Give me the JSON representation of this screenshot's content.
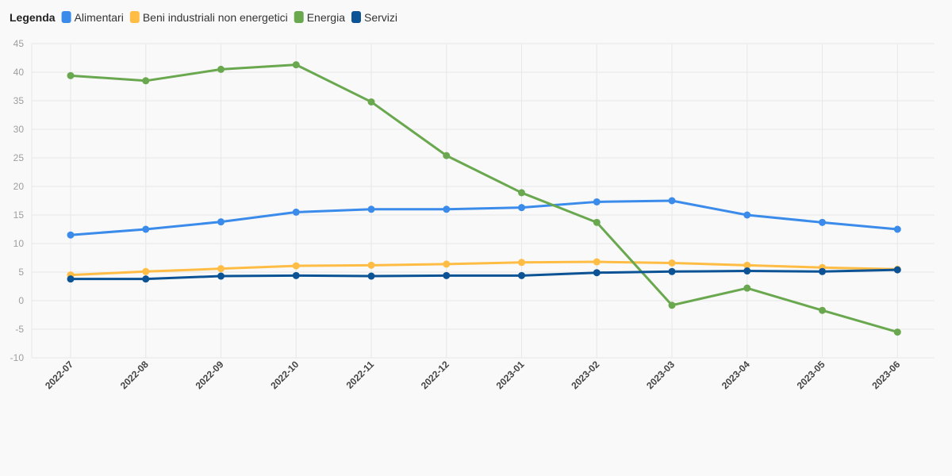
{
  "legend": {
    "title": "Legenda"
  },
  "chart_data": {
    "type": "line",
    "title": "",
    "xlabel": "",
    "ylabel": "",
    "ylim": [
      -10,
      45
    ],
    "yticks": [
      45,
      40,
      35,
      30,
      25,
      20,
      15,
      10,
      5,
      0,
      -5,
      -10
    ],
    "grid": true,
    "legend_position": "top-left",
    "categories": [
      "2022-07",
      "2022-08",
      "2022-09",
      "2022-10",
      "2022-11",
      "2022-12",
      "2023-01",
      "2023-02",
      "2023-03",
      "2023-04",
      "2023-05",
      "2023-06"
    ],
    "series": [
      {
        "name": "Alimentari",
        "color": "#3b8beb",
        "values": [
          11.5,
          12.5,
          13.8,
          15.5,
          16.0,
          16.0,
          16.3,
          17.3,
          17.5,
          15.0,
          13.7,
          12.5
        ]
      },
      {
        "name": "Beni industriali non energetici",
        "color": "#ffbd45",
        "values": [
          4.5,
          5.1,
          5.6,
          6.1,
          6.2,
          6.4,
          6.7,
          6.8,
          6.6,
          6.2,
          5.8,
          5.5
        ]
      },
      {
        "name": "Energia",
        "color": "#6aa84f",
        "values": [
          39.4,
          38.5,
          40.5,
          41.3,
          34.8,
          25.4,
          18.9,
          13.7,
          -0.8,
          2.2,
          -1.7,
          -5.5
        ]
      },
      {
        "name": "Servizi",
        "color": "#0b5394",
        "values": [
          3.8,
          3.8,
          4.3,
          4.4,
          4.3,
          4.4,
          4.4,
          4.9,
          5.1,
          5.2,
          5.1,
          5.4
        ]
      }
    ]
  }
}
